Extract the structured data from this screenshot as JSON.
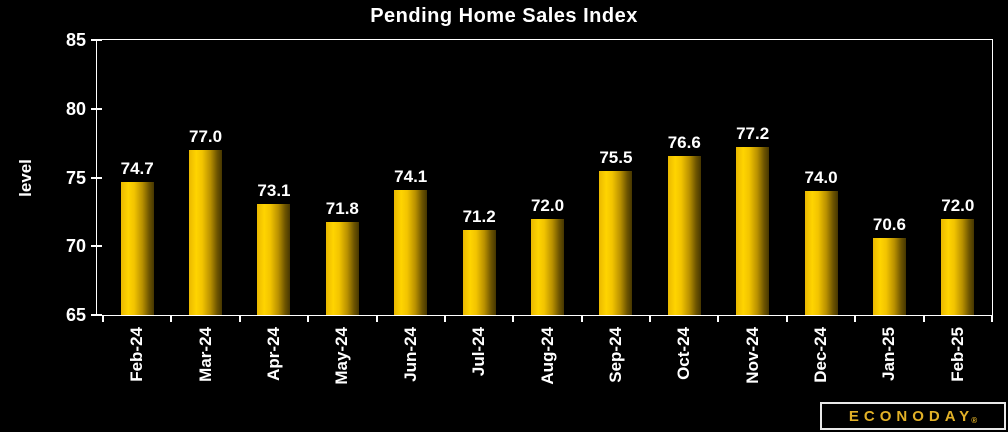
{
  "chart_data": {
    "type": "bar",
    "title": "Pending Home Sales Index",
    "xlabel": "",
    "ylabel": "level",
    "categories": [
      "Feb-24",
      "Mar-24",
      "Apr-24",
      "May-24",
      "Jun-24",
      "Jul-24",
      "Aug-24",
      "Sep-24",
      "Oct-24",
      "Nov-24",
      "Dec-24",
      "Jan-25",
      "Feb-25"
    ],
    "values": [
      74.7,
      77.0,
      73.1,
      71.8,
      74.1,
      71.2,
      72.0,
      75.5,
      76.6,
      77.2,
      74.0,
      70.6,
      72.0
    ],
    "value_labels": [
      "74.7",
      "77.0",
      "73.1",
      "71.8",
      "74.1",
      "71.2",
      "72.0",
      "75.5",
      "76.6",
      "77.2",
      "74.0",
      "70.6",
      "72.0"
    ],
    "ylim": [
      65,
      85
    ],
    "yticks": [
      85,
      80,
      75,
      70,
      65
    ],
    "grid": false,
    "legend_position": "none",
    "bar_labels_shown": true
  },
  "colors": {
    "background": "#000000",
    "text": "#ffffff",
    "plot_border": "#ffffff",
    "bar_gradient_stops": [
      "#eab800 0%",
      "#ffd400 22%",
      "#f2c400 40%",
      "#b89000 65%",
      "#6e5500 85%",
      "#463600 100%"
    ],
    "logo_gold": "#e2b127",
    "logo_border": "#e8e8e8"
  },
  "logo": {
    "text": "ECONODAY",
    "reg_mark": "®"
  }
}
